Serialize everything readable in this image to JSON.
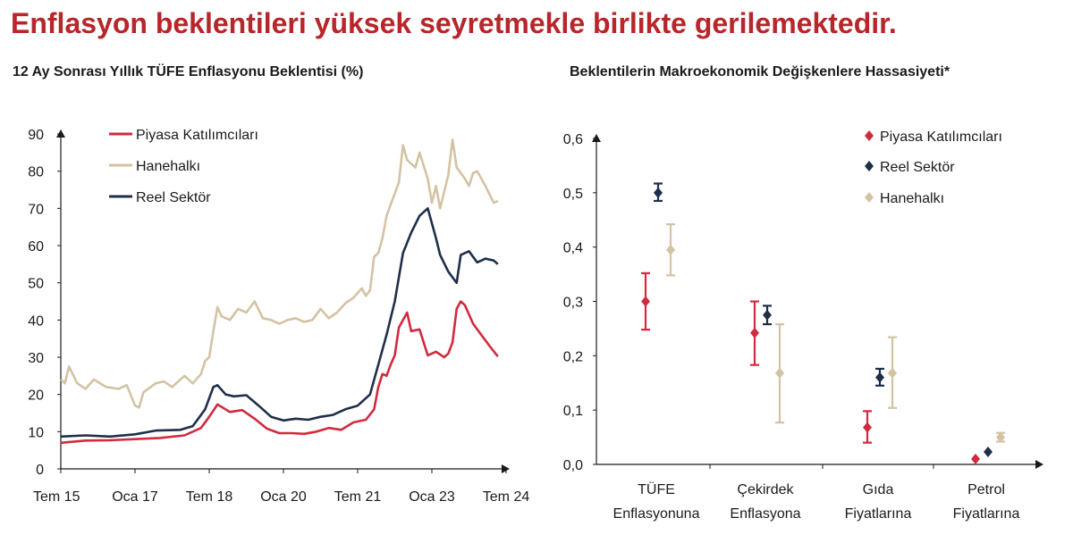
{
  "headline": "Enflasyon beklentileri yüksek seyretmekle birlikte gerilemektedir.",
  "colors": {
    "headline": "#b7262a",
    "piyasa": "#d12b3f",
    "hanehalki": "#d3c3a3",
    "reel": "#1f2f4a"
  },
  "chart_data": [
    {
      "type": "line",
      "title": "12 Ay Sonrası Yıllık TÜFE Enflasyonu Beklentisi (%)",
      "ylim": [
        0,
        90
      ],
      "y_ticks": [
        "0",
        "10",
        "20",
        "30",
        "40",
        "50",
        "60",
        "70",
        "80",
        "90"
      ],
      "x_tick_labels": [
        "Tem 15",
        "Oca 17",
        "Tem 18",
        "Oca 20",
        "Tem 21",
        "Oca 23",
        "Tem 24"
      ],
      "x_tick_dates": [
        "2015-07",
        "2017-01",
        "2018-07",
        "2020-01",
        "2021-07",
        "2023-01",
        "2024-07"
      ],
      "legend_position": "top-left",
      "series": [
        {
          "name": "Piyasa Katılımcıları",
          "color": "#d12b3f",
          "points": [
            [
              "2015-07",
              7.0
            ],
            [
              "2016-01",
              7.6
            ],
            [
              "2016-07",
              7.7
            ],
            [
              "2017-01",
              8.0
            ],
            [
              "2017-07",
              8.3
            ],
            [
              "2018-01",
              9.0
            ],
            [
              "2018-05",
              11.0
            ],
            [
              "2018-07",
              14.0
            ],
            [
              "2018-09",
              17.3
            ],
            [
              "2018-12",
              15.3
            ],
            [
              "2019-03",
              15.8
            ],
            [
              "2019-06",
              13.5
            ],
            [
              "2019-09",
              10.8
            ],
            [
              "2019-12",
              9.6
            ],
            [
              "2020-03",
              9.6
            ],
            [
              "2020-06",
              9.4
            ],
            [
              "2020-09",
              10.0
            ],
            [
              "2020-12",
              11.0
            ],
            [
              "2021-03",
              10.5
            ],
            [
              "2021-06",
              12.5
            ],
            [
              "2021-09",
              13.2
            ],
            [
              "2021-11",
              16.0
            ],
            [
              "2021-12",
              22.0
            ],
            [
              "2022-01",
              25.5
            ],
            [
              "2022-02",
              25.0
            ],
            [
              "2022-03",
              28.0
            ],
            [
              "2022-04",
              30.5
            ],
            [
              "2022-05",
              38.0
            ],
            [
              "2022-07",
              42.0
            ],
            [
              "2022-08",
              37.0
            ],
            [
              "2022-10",
              37.5
            ],
            [
              "2022-12",
              30.5
            ],
            [
              "2023-02",
              31.5
            ],
            [
              "2023-04",
              30.0
            ],
            [
              "2023-05",
              31.0
            ],
            [
              "2023-06",
              34.0
            ],
            [
              "2023-07",
              43.0
            ],
            [
              "2023-08",
              45.0
            ],
            [
              "2023-09",
              44.0
            ],
            [
              "2023-11",
              39.0
            ],
            [
              "2024-01",
              36.0
            ],
            [
              "2024-03",
              33.0
            ],
            [
              "2024-05",
              30.2
            ]
          ]
        },
        {
          "name": "Hanehalkı",
          "color": "#d3c3a3",
          "points": [
            [
              "2015-07",
              24.0
            ],
            [
              "2015-08",
              23.0
            ],
            [
              "2015-09",
              27.5
            ],
            [
              "2015-11",
              23.0
            ],
            [
              "2016-01",
              21.5
            ],
            [
              "2016-03",
              24.0
            ],
            [
              "2016-06",
              22.0
            ],
            [
              "2016-09",
              21.5
            ],
            [
              "2016-11",
              22.5
            ],
            [
              "2017-01",
              17.0
            ],
            [
              "2017-02",
              16.5
            ],
            [
              "2017-03",
              20.5
            ],
            [
              "2017-06",
              23.0
            ],
            [
              "2017-08",
              23.5
            ],
            [
              "2017-10",
              22.0
            ],
            [
              "2018-01",
              25.0
            ],
            [
              "2018-03",
              23.0
            ],
            [
              "2018-05",
              25.5
            ],
            [
              "2018-06",
              29.0
            ],
            [
              "2018-07",
              30.0
            ],
            [
              "2018-08",
              37.0
            ],
            [
              "2018-09",
              43.5
            ],
            [
              "2018-10",
              41.0
            ],
            [
              "2018-12",
              40.0
            ],
            [
              "2019-02",
              43.0
            ],
            [
              "2019-04",
              42.0
            ],
            [
              "2019-06",
              45.0
            ],
            [
              "2019-08",
              40.5
            ],
            [
              "2019-10",
              40.0
            ],
            [
              "2019-12",
              39.0
            ],
            [
              "2020-02",
              40.0
            ],
            [
              "2020-04",
              40.5
            ],
            [
              "2020-06",
              39.5
            ],
            [
              "2020-08",
              40.0
            ],
            [
              "2020-10",
              43.0
            ],
            [
              "2020-12",
              40.5
            ],
            [
              "2021-02",
              42.0
            ],
            [
              "2021-04",
              44.5
            ],
            [
              "2021-06",
              46.0
            ],
            [
              "2021-08",
              48.5
            ],
            [
              "2021-09",
              46.5
            ],
            [
              "2021-10",
              48.0
            ],
            [
              "2021-11",
              57.0
            ],
            [
              "2021-12",
              58.0
            ],
            [
              "2022-01",
              62.0
            ],
            [
              "2022-02",
              68.0
            ],
            [
              "2022-04",
              74.0
            ],
            [
              "2022-05",
              77.0
            ],
            [
              "2022-06",
              87.0
            ],
            [
              "2022-07",
              83.0
            ],
            [
              "2022-09",
              81.0
            ],
            [
              "2022-10",
              85.0
            ],
            [
              "2022-12",
              78.0
            ],
            [
              "2023-01",
              71.5
            ],
            [
              "2023-02",
              76.0
            ],
            [
              "2023-03",
              70.0
            ],
            [
              "2023-05",
              79.0
            ],
            [
              "2023-06",
              88.5
            ],
            [
              "2023-07",
              81.0
            ],
            [
              "2023-09",
              78.0
            ],
            [
              "2023-10",
              76.0
            ],
            [
              "2023-11",
              79.5
            ],
            [
              "2023-12",
              80.0
            ],
            [
              "2024-02",
              76.0
            ],
            [
              "2024-04",
              71.5
            ],
            [
              "2024-05",
              72.0
            ]
          ]
        },
        {
          "name": "Reel Sektör",
          "color": "#1f2f4a",
          "points": [
            [
              "2015-07",
              8.7
            ],
            [
              "2016-01",
              9.0
            ],
            [
              "2016-07",
              8.7
            ],
            [
              "2017-01",
              9.3
            ],
            [
              "2017-06",
              10.3
            ],
            [
              "2017-12",
              10.5
            ],
            [
              "2018-03",
              11.5
            ],
            [
              "2018-06",
              16.0
            ],
            [
              "2018-08",
              22.0
            ],
            [
              "2018-09",
              22.5
            ],
            [
              "2018-11",
              20.0
            ],
            [
              "2019-01",
              19.5
            ],
            [
              "2019-04",
              19.8
            ],
            [
              "2019-07",
              17.0
            ],
            [
              "2019-10",
              14.0
            ],
            [
              "2020-01",
              13.0
            ],
            [
              "2020-04",
              13.5
            ],
            [
              "2020-07",
              13.2
            ],
            [
              "2020-10",
              14.0
            ],
            [
              "2021-01",
              14.5
            ],
            [
              "2021-04",
              16.0
            ],
            [
              "2021-07",
              17.0
            ],
            [
              "2021-10",
              20.0
            ],
            [
              "2021-12",
              28.0
            ],
            [
              "2022-02",
              36.0
            ],
            [
              "2022-04",
              45.0
            ],
            [
              "2022-06",
              58.0
            ],
            [
              "2022-08",
              63.5
            ],
            [
              "2022-10",
              68.0
            ],
            [
              "2022-12",
              70.0
            ],
            [
              "2023-02",
              62.0
            ],
            [
              "2023-03",
              57.5
            ],
            [
              "2023-05",
              53.0
            ],
            [
              "2023-07",
              50.0
            ],
            [
              "2023-08",
              57.5
            ],
            [
              "2023-10",
              58.5
            ],
            [
              "2023-12",
              55.5
            ],
            [
              "2024-02",
              56.5
            ],
            [
              "2024-04",
              56.0
            ],
            [
              "2024-05",
              55.0
            ]
          ]
        }
      ]
    },
    {
      "type": "scatter",
      "title": "Beklentilerin Makroekonomik Değişkenlere Hassasiyeti*",
      "ylim": [
        0,
        0.6
      ],
      "y_ticks": [
        "0,0",
        "0,1",
        "0,2",
        "0,3",
        "0,4",
        "0,5",
        "0,6"
      ],
      "categories": [
        [
          "TÜFE",
          "Enflasyonuna"
        ],
        [
          "Çekirdek",
          "Enflasyona"
        ],
        [
          "Gıda",
          "Fiyatlarına"
        ],
        [
          "Petrol",
          "Fiyatlarına"
        ]
      ],
      "legend_position": "top-right",
      "series": [
        {
          "name": "Piyasa Katılımcıları",
          "color": "#d12b3f",
          "values": [
            0.3,
            0.242,
            0.068,
            0.01
          ],
          "low": [
            0.248,
            0.183,
            0.04,
            null
          ],
          "high": [
            0.352,
            0.3,
            0.098,
            null
          ]
        },
        {
          "name": "Reel Sektör",
          "color": "#1f2f4a",
          "values": [
            0.5,
            0.275,
            0.16,
            0.023
          ],
          "low": [
            0.485,
            0.258,
            0.145,
            null
          ],
          "high": [
            0.517,
            0.292,
            0.176,
            null
          ]
        },
        {
          "name": "Hanehalkı",
          "color": "#d3c3a3",
          "values": [
            0.395,
            0.168,
            0.168,
            0.05
          ],
          "low": [
            0.348,
            0.077,
            0.104,
            0.042
          ],
          "high": [
            0.442,
            0.258,
            0.234,
            0.058
          ]
        }
      ]
    }
  ]
}
